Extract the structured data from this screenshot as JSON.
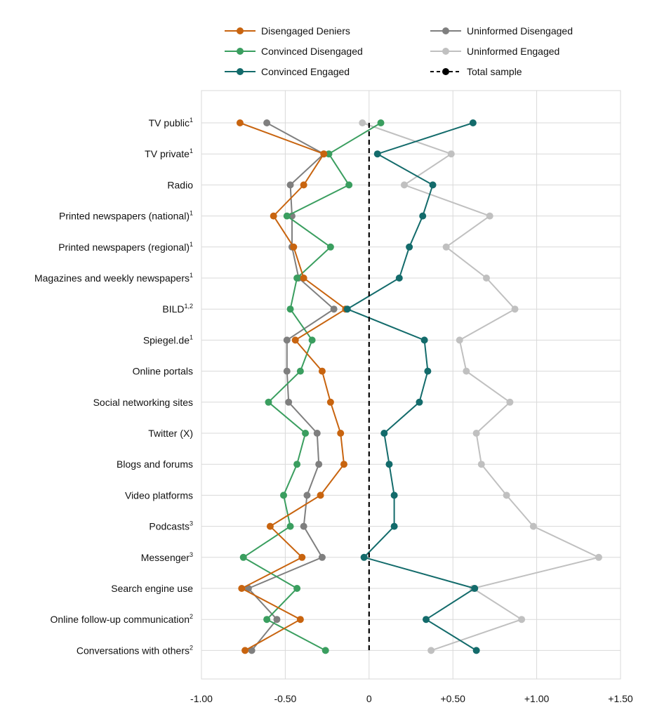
{
  "chart_data": {
    "type": "line",
    "orientation": "horizontal",
    "categories": [
      {
        "label": "TV public",
        "sup": "1"
      },
      {
        "label": "TV private",
        "sup": "1"
      },
      {
        "label": "Radio",
        "sup": ""
      },
      {
        "label": "Printed newspapers (national)",
        "sup": "1"
      },
      {
        "label": "Printed newspapers (regional)",
        "sup": "1"
      },
      {
        "label": "Magazines and weekly newspapers",
        "sup": "1"
      },
      {
        "label": "BILD",
        "sup": "1,2"
      },
      {
        "label": "Spiegel.de",
        "sup": "1"
      },
      {
        "label": "Online portals",
        "sup": ""
      },
      {
        "label": "Social networking sites",
        "sup": ""
      },
      {
        "label": "Twitter (X)",
        "sup": ""
      },
      {
        "label": "Blogs and forums",
        "sup": ""
      },
      {
        "label": "Video platforms",
        "sup": ""
      },
      {
        "label": "Podcasts",
        "sup": "3"
      },
      {
        "label": "Messenger",
        "sup": "3"
      },
      {
        "label": "Search engine use",
        "sup": ""
      },
      {
        "label": "Online follow-up communication",
        "sup": "2"
      },
      {
        "label": "Conversations with others",
        "sup": "2"
      }
    ],
    "xlim": [
      -1.0,
      1.5
    ],
    "xticks": [
      {
        "value": -1.0,
        "label": "-1.00"
      },
      {
        "value": -0.5,
        "label": "-0.50"
      },
      {
        "value": 0.0,
        "label": "0"
      },
      {
        "value": 0.5,
        "label": "+0.50"
      },
      {
        "value": 1.0,
        "label": "+1.00"
      },
      {
        "value": 1.5,
        "label": "+1.50"
      }
    ],
    "grid": true,
    "legend_position": "top",
    "series": [
      {
        "name": "Disengaged Deniers",
        "color": "#c8640f",
        "dashed": false,
        "values": [
          -0.77,
          -0.27,
          -0.39,
          -0.57,
          -0.45,
          -0.39,
          -0.14,
          -0.44,
          -0.28,
          -0.23,
          -0.17,
          -0.15,
          -0.29,
          -0.59,
          -0.4,
          -0.76,
          -0.41,
          -0.74
        ]
      },
      {
        "name": "Uninformed Disengaged",
        "color": "#7f7f7f",
        "dashed": false,
        "values": [
          -0.61,
          -0.27,
          -0.47,
          -0.46,
          -0.46,
          -0.42,
          -0.21,
          -0.49,
          -0.49,
          -0.48,
          -0.31,
          -0.3,
          -0.37,
          -0.39,
          -0.28,
          -0.72,
          -0.55,
          -0.7
        ]
      },
      {
        "name": "Convinced Disengaged",
        "color": "#3a9e5f",
        "dashed": false,
        "values": [
          0.07,
          -0.24,
          -0.12,
          -0.49,
          -0.23,
          -0.43,
          -0.47,
          -0.34,
          -0.41,
          -0.6,
          -0.38,
          -0.43,
          -0.51,
          -0.47,
          -0.75,
          -0.43,
          -0.61,
          -0.26
        ]
      },
      {
        "name": "Uninformed Engaged",
        "color": "#c0c0c0",
        "dashed": false,
        "values": [
          -0.04,
          0.49,
          0.21,
          0.72,
          0.46,
          0.7,
          0.87,
          0.54,
          0.58,
          0.84,
          0.64,
          0.67,
          0.82,
          0.98,
          1.37,
          0.62,
          0.91,
          0.37
        ]
      },
      {
        "name": "Convinced Engaged",
        "color": "#136b6b",
        "dashed": false,
        "values": [
          0.62,
          0.05,
          0.38,
          0.32,
          0.24,
          0.18,
          -0.13,
          0.33,
          0.35,
          0.3,
          0.09,
          0.12,
          0.15,
          0.15,
          -0.03,
          0.63,
          0.34,
          0.64
        ]
      },
      {
        "name": "Total sample",
        "color": "#000000",
        "dashed": true,
        "values": [
          0,
          0,
          0,
          0,
          0,
          0,
          0,
          0,
          0,
          0,
          0,
          0,
          0,
          0,
          0,
          0,
          0,
          0
        ]
      }
    ],
    "legend": [
      {
        "series": 0,
        "col": 0,
        "row": 0
      },
      {
        "series": 1,
        "col": 1,
        "row": 0
      },
      {
        "series": 2,
        "col": 0,
        "row": 1
      },
      {
        "series": 3,
        "col": 1,
        "row": 1
      },
      {
        "series": 4,
        "col": 0,
        "row": 2
      },
      {
        "series": 5,
        "col": 1,
        "row": 2
      }
    ]
  }
}
